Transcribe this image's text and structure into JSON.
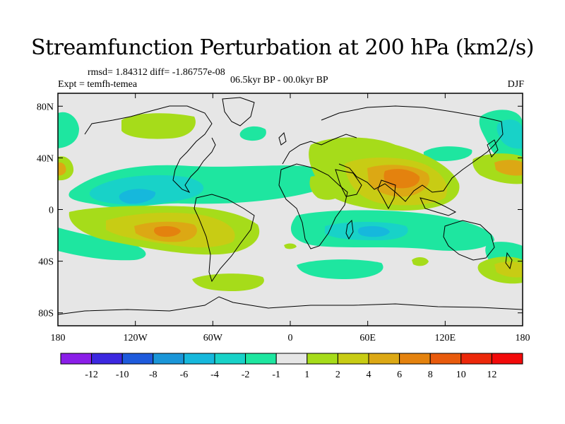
{
  "title": "Streamfunction Perturbation at 200 hPa (km2/s)",
  "stats": "rmsd= 1.84312 diff= -1.86757e-08",
  "experiment": "Expt = temfh-temea",
  "period": "06.5kyr BP - 00.0kyr BP",
  "season": "DJF",
  "y_ticks": [
    "80N",
    "40N",
    "0",
    "40S",
    "80S"
  ],
  "x_ticks": [
    "180",
    "120W",
    "60W",
    "0",
    "60E",
    "120E",
    "180"
  ],
  "colorbar": {
    "labels": [
      "-12",
      "-10",
      "-8",
      "-6",
      "-4",
      "-2",
      "-1",
      "1",
      "2",
      "4",
      "6",
      "8",
      "10",
      "12"
    ],
    "colors": [
      "#8a1ee8",
      "#3c28e0",
      "#1e5adc",
      "#1a96d8",
      "#16b8dc",
      "#18d2c8",
      "#1ee6a0",
      "#e6e6e6",
      "#a6dc1a",
      "#c8cc14",
      "#dca814",
      "#e4820e",
      "#e85a0c",
      "#ec280a",
      "#f20a0a"
    ]
  }
}
